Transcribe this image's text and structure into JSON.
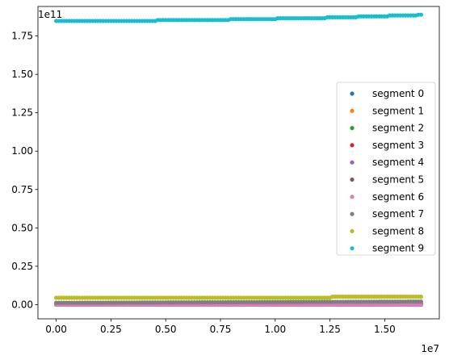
{
  "chart_data": {
    "type": "scatter",
    "title": "",
    "xlabel": "",
    "ylabel": "",
    "x_offset_label": "1e7",
    "y_offset_label": "1e11",
    "xlim": [
      -0.0833,
      1.7493
    ],
    "ylim": [
      -0.0925,
      1.9425
    ],
    "x_ticks": [
      0.0,
      0.25,
      0.5,
      0.75,
      1.0,
      1.25,
      1.5
    ],
    "x_tick_labels": [
      "0.00",
      "0.25",
      "0.50",
      "0.75",
      "1.00",
      "1.25",
      "1.50"
    ],
    "y_ticks": [
      0.0,
      0.25,
      0.5,
      0.75,
      1.0,
      1.25,
      1.5,
      1.75
    ],
    "y_tick_labels": [
      "0.00",
      "0.25",
      "0.50",
      "0.75",
      "1.00",
      "1.25",
      "1.50",
      "1.75"
    ],
    "grid": false,
    "legend_position": "center-right",
    "x_range": [
      0.0,
      1.666
    ],
    "series": [
      {
        "name": "segment 0",
        "color": "#1f77b4",
        "y_start": 0.0,
        "y_end": 0.0,
        "steps": []
      },
      {
        "name": "segment 1",
        "color": "#ff7f0e",
        "y_start": 0.0,
        "y_end": 0.0,
        "steps": []
      },
      {
        "name": "segment 2",
        "color": "#2ca02c",
        "y_start": 0.0,
        "y_end": 0.0,
        "steps": []
      },
      {
        "name": "segment 3",
        "color": "#d62728",
        "y_start": 0.0,
        "y_end": 0.0,
        "steps": []
      },
      {
        "name": "segment 4",
        "color": "#9467bd",
        "y_start": 0.0,
        "y_end": 0.0,
        "steps": []
      },
      {
        "name": "segment 5",
        "color": "#8c564b",
        "y_start": 0.005,
        "y_end": 0.006,
        "steps": []
      },
      {
        "name": "segment 6",
        "color": "#e377c2",
        "y_start": 0.0,
        "y_end": 0.0,
        "steps": []
      },
      {
        "name": "segment 7",
        "color": "#7f7f7f",
        "y_start": 0.012,
        "y_end": 0.02,
        "steps": []
      },
      {
        "name": "segment 8",
        "color": "#bcbd22",
        "y_start": 0.045,
        "y_end": 0.052,
        "steps": [
          {
            "x": 1.25,
            "y": 0.052
          }
        ]
      },
      {
        "name": "segment 9",
        "color": "#17becf",
        "y_start": 1.85,
        "y_end": 1.89,
        "steps": [
          {
            "x": 0.0,
            "y": 1.848
          },
          {
            "x": 0.46,
            "y": 1.854
          },
          {
            "x": 0.79,
            "y": 1.86
          },
          {
            "x": 1.01,
            "y": 1.866
          },
          {
            "x": 1.23,
            "y": 1.872
          },
          {
            "x": 1.37,
            "y": 1.878
          },
          {
            "x": 1.52,
            "y": 1.884
          },
          {
            "x": 1.65,
            "y": 1.889
          }
        ]
      }
    ]
  }
}
